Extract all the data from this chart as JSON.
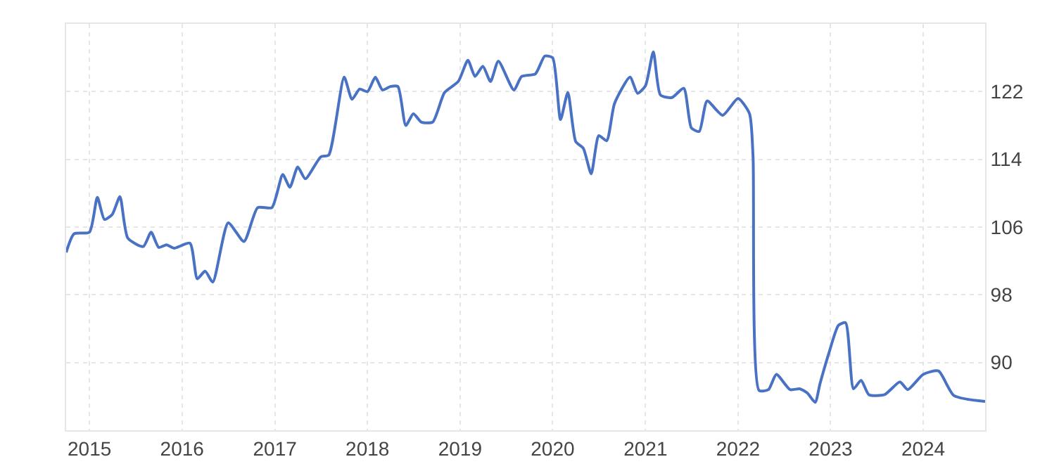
{
  "chart_data": {
    "type": "line",
    "x": [
      "2014-10",
      "2014-11",
      "2015-01",
      "2015-02",
      "2015-03",
      "2015-04",
      "2015-05",
      "2015-06",
      "2015-08",
      "2015-09",
      "2015-10",
      "2015-11",
      "2015-12",
      "2016-02",
      "2016-03",
      "2016-04",
      "2016-05",
      "2016-07",
      "2016-09",
      "2016-10-25",
      "2016-12-20",
      "2017-02",
      "2017-03",
      "2017-04",
      "2017-05",
      "2017-07",
      "2017-08",
      "2017-10",
      "2017-11",
      "2017-12",
      "2018-01",
      "2018-02",
      "2018-03",
      "2018-04",
      "2018-05",
      "2018-06",
      "2018-07",
      "2018-08",
      "2018-09-15",
      "2018-11",
      "2018-12-25",
      "2019-02",
      "2019-03",
      "2019-04",
      "2019-05",
      "2019-06",
      "2019-08",
      "2019-09",
      "2019-10-25",
      "2019-12",
      "2020-01",
      "2020-02",
      "2020-03",
      "2020-04",
      "2020-05",
      "2020-06",
      "2020-07",
      "2020-08",
      "2020-09",
      "2020-11",
      "2020-12",
      "2021-01",
      "2021-02",
      "2021-03",
      "2021-04-15",
      "2021-06",
      "2021-07",
      "2021-08",
      "2021-09",
      "2021-11",
      "2022-01",
      "2022-02-15",
      "2022-03-01",
      "2022-03-25",
      "2022-05",
      "2022-06",
      "2022-07-25",
      "2022-09",
      "2022-10",
      "2022-11",
      "2022-11-20",
      "2022-12-25",
      "2023-02",
      "2023-03",
      "2023-04",
      "2023-05",
      "2023-06",
      "2023-08",
      "2023-10",
      "2023-11",
      "2024-01",
      "2024-03",
      "2024-05",
      "2024-09"
    ],
    "series": [
      {
        "color": "#4a72c4",
        "values": [
          103.0,
          105.2,
          105.4,
          109.5,
          106.9,
          107.5,
          109.6,
          104.7,
          103.7,
          105.4,
          103.6,
          103.9,
          103.5,
          104.1,
          99.9,
          100.8,
          99.5,
          106.5,
          104.3,
          108.3,
          108.3,
          112.2,
          110.7,
          113.1,
          111.7,
          114.3,
          114.5,
          123.7,
          121.1,
          122.3,
          122.0,
          123.7,
          122.2,
          122.6,
          122.6,
          118.0,
          119.4,
          118.4,
          118.4,
          121.9,
          123.2,
          125.7,
          123.8,
          125.0,
          123.2,
          125.6,
          122.2,
          123.8,
          124.1,
          126.2,
          126.0,
          118.7,
          121.9,
          116.1,
          115.3,
          112.3,
          116.8,
          116.2,
          120.6,
          123.7,
          121.8,
          122.7,
          126.7,
          121.6,
          121.3,
          122.4,
          117.7,
          117.3,
          120.9,
          119.2,
          121.2,
          119.4,
          114.4,
          86.7,
          86.8,
          88.6,
          86.8,
          86.9,
          86.4,
          85.3,
          87.5,
          91.1,
          94.4,
          94.7,
          86.9,
          87.9,
          86.2,
          86.2,
          87.7,
          86.8,
          88.6,
          89.0,
          86.1,
          85.4
        ]
      }
    ],
    "xlim": [
      "2014-10",
      "2024-09"
    ],
    "xticks": [
      {
        "value": "2015-01",
        "label": "2015"
      },
      {
        "value": "2016-01",
        "label": "2016"
      },
      {
        "value": "2017-01",
        "label": "2017"
      },
      {
        "value": "2018-01",
        "label": "2018"
      },
      {
        "value": "2019-01",
        "label": "2019"
      },
      {
        "value": "2020-01",
        "label": "2020"
      },
      {
        "value": "2021-01",
        "label": "2021"
      },
      {
        "value": "2022-01",
        "label": "2022"
      },
      {
        "value": "2023-01",
        "label": "2023"
      },
      {
        "value": "2024-01",
        "label": "2024"
      }
    ],
    "ylim": [
      82,
      130
    ],
    "yticks": [
      {
        "value": 82,
        "label": null
      },
      90,
      98,
      106,
      114,
      122,
      {
        "value": 130,
        "label": null
      }
    ],
    "grid": true,
    "line_style": "solid",
    "marker": "none"
  }
}
